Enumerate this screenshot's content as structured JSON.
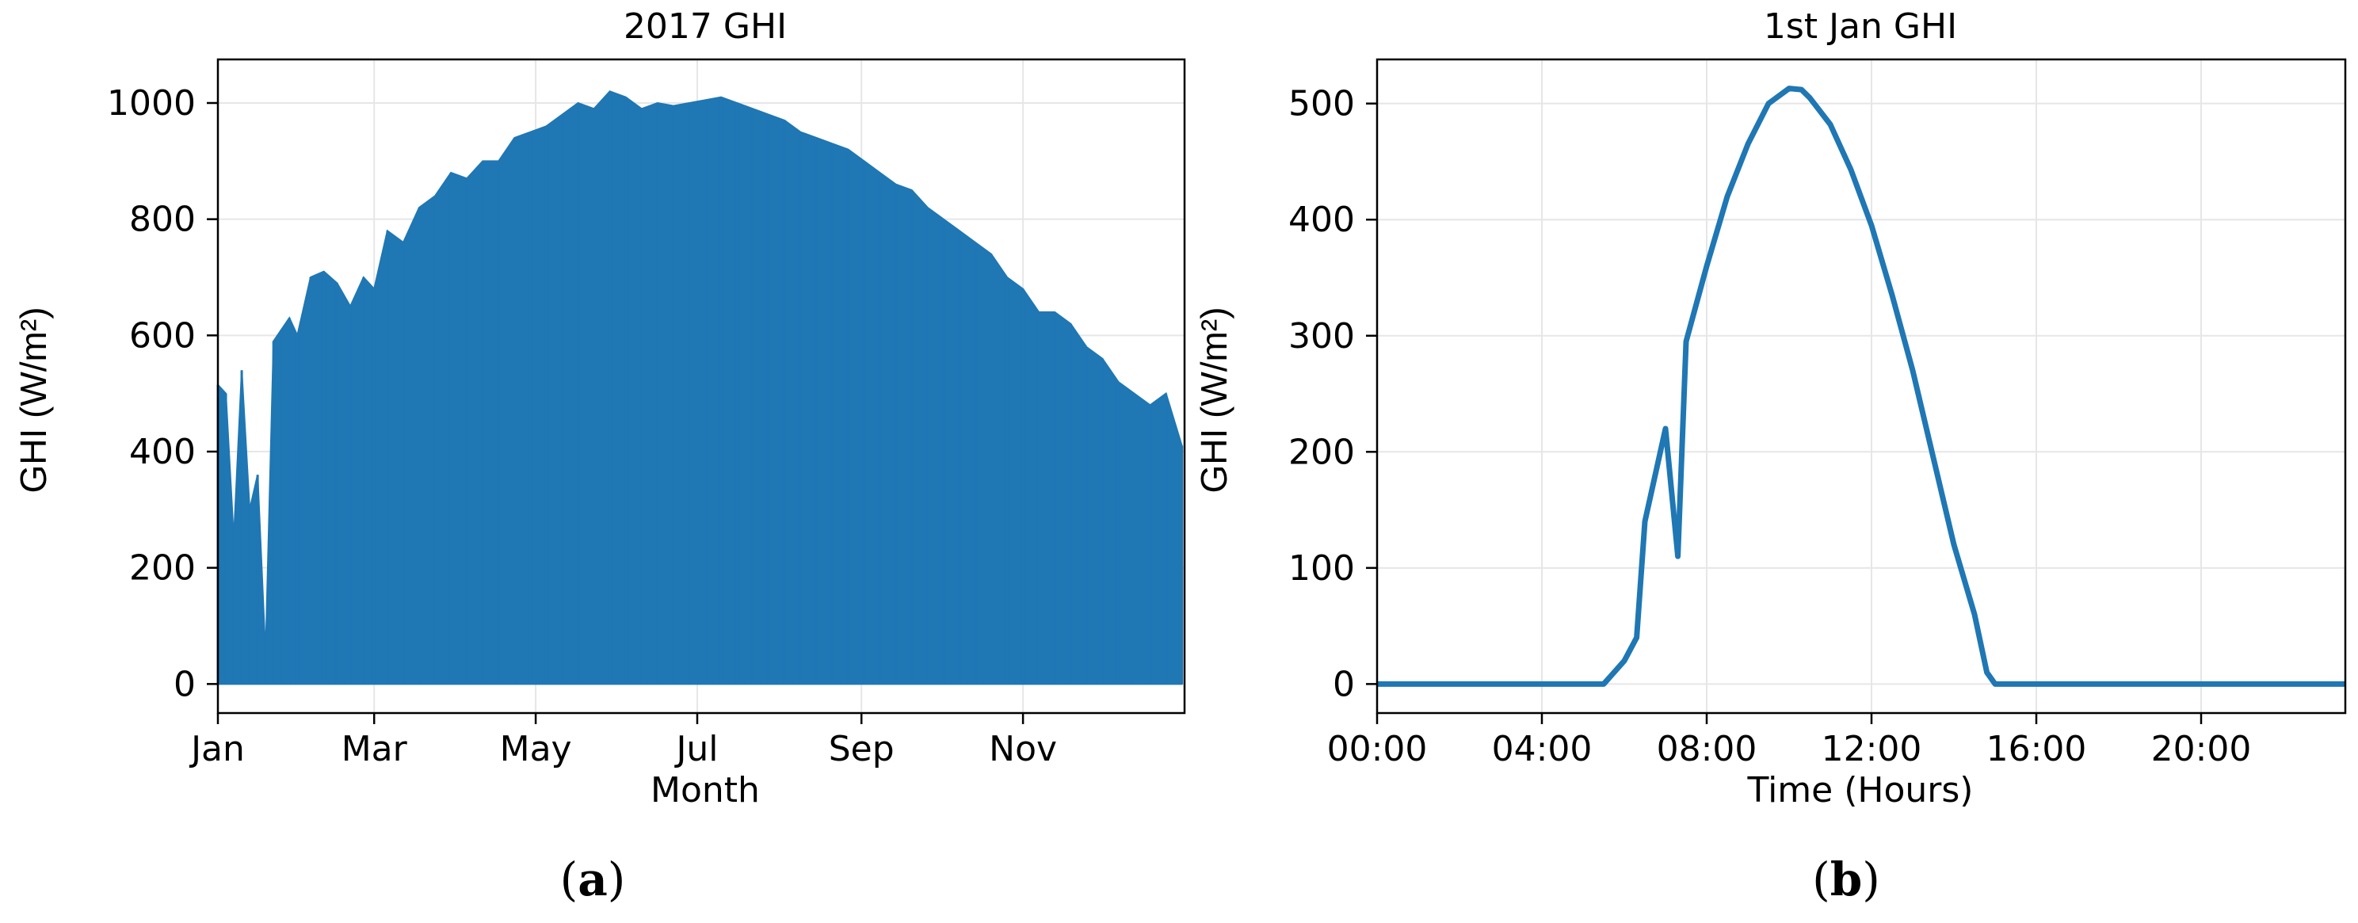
{
  "chart_data": [
    {
      "type": "area",
      "title": "2017 GHI",
      "xlabel": "Month",
      "ylabel": "GHI (W/m²)",
      "panel_label": "(a)",
      "x_tick_labels": [
        "Jan",
        "Mar",
        "May",
        "Jul",
        "Sep",
        "Nov"
      ],
      "x_tick_months": [
        0,
        2,
        4,
        6,
        8,
        10
      ],
      "y_ticks": [
        0,
        200,
        400,
        600,
        800,
        1000
      ],
      "ylim": [
        -50,
        1075
      ],
      "xlim_days": [
        0,
        365
      ],
      "grid": true,
      "color": "#1f77b4",
      "daily_max_x_day": [
        0,
        3,
        6,
        9,
        12,
        15,
        18,
        21,
        24,
        27,
        30,
        35,
        40,
        45,
        50,
        55,
        59,
        64,
        70,
        76,
        82,
        88,
        94,
        100,
        106,
        112,
        118,
        124,
        130,
        136,
        142,
        148,
        154,
        160,
        166,
        172,
        178,
        184,
        190,
        196,
        202,
        208,
        214,
        220,
        226,
        232,
        238,
        244,
        250,
        256,
        262,
        268,
        274,
        280,
        286,
        292,
        298,
        304,
        310,
        316,
        322,
        328,
        334,
        340,
        346,
        352,
        358,
        364
      ],
      "daily_max_y": [
        515,
        500,
        250,
        540,
        300,
        360,
        50,
        590,
        610,
        630,
        600,
        700,
        710,
        690,
        650,
        700,
        680,
        780,
        760,
        820,
        840,
        880,
        870,
        900,
        900,
        940,
        950,
        960,
        980,
        1000,
        990,
        1020,
        1010,
        990,
        1000,
        995,
        1000,
        1005,
        1010,
        1000,
        990,
        980,
        970,
        950,
        940,
        930,
        920,
        900,
        880,
        860,
        850,
        820,
        800,
        780,
        760,
        740,
        700,
        680,
        640,
        640,
        620,
        580,
        560,
        520,
        500,
        480,
        500,
        410
      ]
    },
    {
      "type": "line",
      "title": "1st Jan GHI",
      "xlabel": "Time (Hours)",
      "ylabel": "GHI (W/m²)",
      "panel_label": "(b)",
      "x_tick_labels": [
        "00:00",
        "04:00",
        "08:00",
        "12:00",
        "16:00",
        "20:00"
      ],
      "x_tick_hours": [
        0,
        4,
        8,
        12,
        16,
        20
      ],
      "y_ticks": [
        0,
        100,
        200,
        300,
        400,
        500
      ],
      "xlim": [
        0,
        23.5
      ],
      "ylim": [
        -25,
        538
      ],
      "grid": true,
      "color": "#1f77b4",
      "x_hours": [
        0,
        5.5,
        6.0,
        6.3,
        6.5,
        7.0,
        7.3,
        7.5,
        8.0,
        8.5,
        9.0,
        9.5,
        10.0,
        10.3,
        10.5,
        11.0,
        11.5,
        12.0,
        12.5,
        13.0,
        13.5,
        14.0,
        14.5,
        14.8,
        15.0,
        16.0,
        20.0,
        23.5
      ],
      "y_values": [
        0,
        0,
        20,
        40,
        140,
        220,
        110,
        295,
        360,
        420,
        465,
        500,
        513,
        512,
        505,
        482,
        443,
        395,
        335,
        270,
        195,
        120,
        60,
        10,
        0,
        0,
        0,
        0
      ]
    }
  ]
}
